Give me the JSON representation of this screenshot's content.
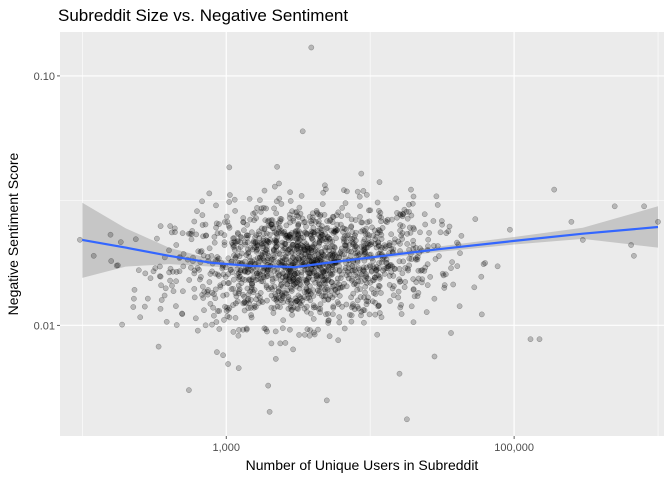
{
  "chart_data": {
    "type": "scatter",
    "title": "Subreddit Size vs. Negative Sentiment",
    "xlabel": "Number of Unique Users in Subreddit",
    "ylabel": "Negative Sentiment Score",
    "x_scale": "log10",
    "y_scale": "log10",
    "xlim": [
      70,
      1100000
    ],
    "ylim": [
      0.0036,
      0.15
    ],
    "x_ticks": [
      {
        "value": 1000,
        "label": "1,000"
      },
      {
        "value": 100000,
        "label": "100,000"
      }
    ],
    "y_ticks": [
      {
        "value": 0.01,
        "label": "0.01"
      },
      {
        "value": 0.1,
        "label": "0.10"
      }
    ],
    "grid": true,
    "legend": "none",
    "colors": {
      "panel": "#ebebeb",
      "grid": "#ffffff",
      "points": "#000000",
      "smooth_line": "#3366ff",
      "ribbon": "#999999"
    },
    "point_cloud": {
      "n_points": 1500,
      "x_center_log10": 3.55,
      "x_spread_log10": 0.45,
      "y_center": 0.018,
      "note_style": "semi-transparent points, alpha 0.25"
    },
    "outliers": [
      [
        400,
        0.02
      ],
      [
        450,
        0.021
      ],
      [
        350,
        0.025
      ],
      [
        600,
        0.014
      ],
      [
        550,
        0.0055
      ],
      [
        120,
        0.019
      ],
      [
        1050,
        0.043
      ],
      [
        1030,
        0.007
      ],
      [
        3900,
        0.13
      ],
      [
        3400,
        0.06
      ],
      [
        5000,
        0.005
      ],
      [
        2000,
        0.0045
      ],
      [
        18000,
        0.0042
      ],
      [
        16000,
        0.0064
      ],
      [
        28000,
        0.0075
      ],
      [
        130000,
        0.0088
      ],
      [
        150000,
        0.0088
      ],
      [
        680000,
        0.019
      ],
      [
        1000000,
        0.026
      ],
      [
        650000,
        0.021
      ],
      [
        500000,
        0.03
      ],
      [
        800000,
        0.03
      ],
      [
        250000,
        0.026
      ],
      [
        300000,
        0.022
      ],
      [
        190000,
        0.035
      ]
    ],
    "smooth": {
      "x": [
        100,
        200,
        400,
        800,
        1500,
        2500,
        3000,
        5000,
        10000,
        30000,
        100000,
        300000,
        1000000
      ],
      "y": [
        0.022,
        0.0205,
        0.019,
        0.0178,
        0.0173,
        0.0172,
        0.0171,
        0.0178,
        0.0187,
        0.0202,
        0.0218,
        0.0233,
        0.0248
      ],
      "lower": [
        0.0155,
        0.0172,
        0.0176,
        0.0172,
        0.0168,
        0.0167,
        0.0167,
        0.0174,
        0.0183,
        0.0197,
        0.0211,
        0.0222,
        0.0205
      ],
      "upper": [
        0.031,
        0.0245,
        0.0205,
        0.0184,
        0.0178,
        0.0177,
        0.0176,
        0.0182,
        0.0191,
        0.0207,
        0.0226,
        0.0246,
        0.03
      ]
    }
  }
}
